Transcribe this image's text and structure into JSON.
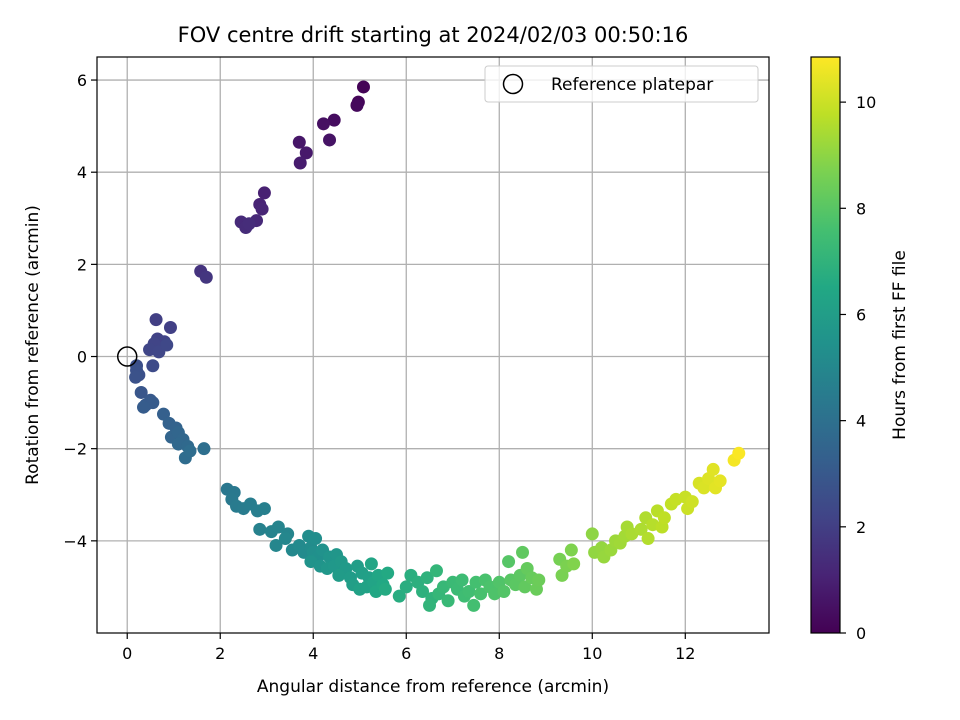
{
  "chart_data": {
    "type": "scatter",
    "title": "FOV centre drift starting at 2024/02/03 00:50:16",
    "xlabel": "Angular distance from reference (arcmin)",
    "ylabel": "Rotation from reference (arcmin)",
    "xlim": [
      -0.65,
      13.8
    ],
    "ylim": [
      -6.0,
      6.5
    ],
    "xticks": [
      0,
      2,
      4,
      6,
      8,
      10,
      12
    ],
    "yticks": [
      -4,
      -2,
      0,
      2,
      4,
      6
    ],
    "xtick_labels": [
      "0",
      "2",
      "4",
      "6",
      "8",
      "10",
      "12"
    ],
    "ytick_labels": [
      "−4",
      "−2",
      "0",
      "2",
      "4",
      "6"
    ],
    "grid": true,
    "legend": {
      "placement": "top-right",
      "entries": [
        "Reference platepar"
      ]
    },
    "reference_point": {
      "x": 0,
      "y": 0
    },
    "colorbar": {
      "label": "Hours from first FF file",
      "colormap": "viridis",
      "range": [
        0,
        10.85
      ],
      "ticks": [
        0,
        2,
        4,
        6,
        8,
        10
      ],
      "tick_labels": [
        "0",
        "2",
        "4",
        "6",
        "8",
        "10"
      ]
    },
    "series": [
      {
        "points": [
          [
            5.08,
            5.85,
            0.05
          ],
          [
            4.97,
            5.52,
            0.15
          ],
          [
            4.94,
            5.45,
            0.25
          ],
          [
            4.45,
            5.13,
            0.35
          ],
          [
            4.22,
            5.05,
            0.45
          ],
          [
            4.35,
            4.7,
            0.55
          ],
          [
            3.7,
            4.65,
            0.65
          ],
          [
            3.85,
            4.42,
            0.75
          ],
          [
            3.72,
            4.2,
            0.85
          ],
          [
            2.95,
            3.55,
            1.0
          ],
          [
            2.85,
            3.3,
            1.1
          ],
          [
            2.9,
            3.2,
            1.15
          ],
          [
            2.78,
            2.95,
            1.25
          ],
          [
            2.45,
            2.92,
            1.3
          ],
          [
            2.55,
            2.8,
            1.35
          ],
          [
            2.62,
            2.88,
            1.4
          ],
          [
            1.58,
            1.85,
            1.6
          ],
          [
            1.7,
            1.72,
            1.7
          ],
          [
            0.62,
            0.8,
            2.0
          ],
          [
            0.93,
            0.63,
            2.05
          ],
          [
            0.65,
            0.38,
            2.1
          ],
          [
            0.8,
            0.32,
            2.15
          ],
          [
            0.58,
            0.28,
            2.2
          ],
          [
            0.48,
            0.15,
            2.25
          ],
          [
            0.68,
            0.1,
            2.3
          ],
          [
            0.85,
            0.25,
            2.35
          ],
          [
            0.55,
            -0.2,
            2.45
          ],
          [
            0.2,
            -0.2,
            2.6
          ],
          [
            0.25,
            -0.4,
            2.65
          ],
          [
            0.2,
            -0.3,
            2.7
          ],
          [
            0.18,
            -0.45,
            2.75
          ],
          [
            0.3,
            -0.78,
            2.9
          ],
          [
            0.5,
            -0.95,
            3.0
          ],
          [
            0.4,
            -1.05,
            3.05
          ],
          [
            0.55,
            -1.0,
            3.1
          ],
          [
            0.35,
            -1.1,
            3.15
          ],
          [
            0.78,
            -1.25,
            3.3
          ],
          [
            0.9,
            -1.45,
            3.4
          ],
          [
            1.05,
            -1.55,
            3.45
          ],
          [
            0.95,
            -1.75,
            3.5
          ],
          [
            1.1,
            -1.65,
            3.55
          ],
          [
            1.2,
            -1.8,
            3.6
          ],
          [
            1.1,
            -1.9,
            3.65
          ],
          [
            1.3,
            -1.95,
            3.7
          ],
          [
            1.25,
            -2.2,
            3.8
          ],
          [
            1.35,
            -2.05,
            3.85
          ],
          [
            1.65,
            -2.0,
            3.95
          ],
          [
            2.15,
            -2.88,
            4.3
          ],
          [
            2.3,
            -2.95,
            4.35
          ],
          [
            2.25,
            -3.1,
            4.4
          ],
          [
            2.35,
            -3.25,
            4.45
          ],
          [
            2.5,
            -3.3,
            4.5
          ],
          [
            2.65,
            -3.2,
            4.55
          ],
          [
            2.8,
            -3.35,
            4.6
          ],
          [
            2.95,
            -3.3,
            4.65
          ],
          [
            2.85,
            -3.75,
            4.75
          ],
          [
            3.1,
            -3.8,
            4.8
          ],
          [
            3.25,
            -3.7,
            4.85
          ],
          [
            3.45,
            -3.85,
            4.9
          ],
          [
            3.2,
            -4.1,
            4.95
          ],
          [
            3.4,
            -3.95,
            5.0
          ],
          [
            3.55,
            -4.2,
            5.05
          ],
          [
            3.7,
            -4.1,
            5.1
          ],
          [
            3.8,
            -4.25,
            5.15
          ],
          [
            3.95,
            -4.15,
            5.2
          ],
          [
            3.9,
            -3.9,
            5.25
          ],
          [
            4.05,
            -3.95,
            5.3
          ],
          [
            4.0,
            -4.25,
            5.35
          ],
          [
            4.1,
            -4.35,
            5.4
          ],
          [
            4.2,
            -4.2,
            5.45
          ],
          [
            3.95,
            -4.45,
            5.5
          ],
          [
            4.15,
            -4.55,
            5.55
          ],
          [
            4.35,
            -4.35,
            5.6
          ],
          [
            4.5,
            -4.3,
            5.65
          ],
          [
            4.3,
            -4.6,
            5.7
          ],
          [
            4.45,
            -4.55,
            5.75
          ],
          [
            4.6,
            -4.45,
            5.8
          ],
          [
            4.7,
            -4.6,
            5.85
          ],
          [
            4.55,
            -4.75,
            5.9
          ],
          [
            4.8,
            -4.8,
            5.95
          ],
          [
            4.95,
            -4.55,
            6.0
          ],
          [
            4.85,
            -4.95,
            6.05
          ],
          [
            5.05,
            -4.7,
            6.1
          ],
          [
            5.2,
            -4.8,
            6.15
          ],
          [
            5.0,
            -5.05,
            6.2
          ],
          [
            5.15,
            -5.0,
            6.25
          ],
          [
            5.3,
            -4.9,
            6.3
          ],
          [
            5.25,
            -4.5,
            6.35
          ],
          [
            5.4,
            -4.75,
            6.4
          ],
          [
            5.35,
            -5.1,
            6.45
          ],
          [
            5.5,
            -4.95,
            6.5
          ],
          [
            5.6,
            -4.7,
            6.55
          ],
          [
            5.55,
            -5.05,
            6.6
          ],
          [
            5.85,
            -5.2,
            6.7
          ],
          [
            6.0,
            -5.0,
            6.75
          ],
          [
            6.1,
            -4.75,
            6.8
          ],
          [
            6.25,
            -4.9,
            6.85
          ],
          [
            6.35,
            -5.1,
            6.9
          ],
          [
            6.45,
            -4.8,
            6.95
          ],
          [
            6.55,
            -5.25,
            7.0
          ],
          [
            6.5,
            -5.4,
            7.05
          ],
          [
            6.65,
            -4.65,
            7.1
          ],
          [
            6.7,
            -5.15,
            7.15
          ],
          [
            6.8,
            -5.0,
            7.2
          ],
          [
            6.9,
            -5.3,
            7.25
          ],
          [
            7.0,
            -4.9,
            7.3
          ],
          [
            7.1,
            -5.05,
            7.35
          ],
          [
            7.2,
            -4.85,
            7.4
          ],
          [
            7.25,
            -5.2,
            7.45
          ],
          [
            7.35,
            -5.1,
            7.5
          ],
          [
            7.45,
            -5.4,
            7.55
          ],
          [
            7.5,
            -4.9,
            7.6
          ],
          [
            7.6,
            -5.15,
            7.65
          ],
          [
            7.7,
            -4.85,
            7.7
          ],
          [
            7.8,
            -5.0,
            7.75
          ],
          [
            7.9,
            -5.15,
            7.8
          ],
          [
            8.0,
            -4.9,
            7.85
          ],
          [
            8.1,
            -5.1,
            7.9
          ],
          [
            8.2,
            -4.45,
            7.95
          ],
          [
            8.25,
            -4.85,
            8.0
          ],
          [
            8.35,
            -4.95,
            8.05
          ],
          [
            8.45,
            -4.75,
            8.1
          ],
          [
            8.5,
            -4.25,
            8.15
          ],
          [
            8.55,
            -5.0,
            8.2
          ],
          [
            8.6,
            -4.6,
            8.25
          ],
          [
            8.7,
            -4.8,
            8.3
          ],
          [
            8.8,
            -5.05,
            8.35
          ],
          [
            8.85,
            -4.85,
            8.4
          ],
          [
            9.3,
            -4.4,
            8.6
          ],
          [
            9.35,
            -4.75,
            8.65
          ],
          [
            9.45,
            -4.55,
            8.7
          ],
          [
            9.55,
            -4.2,
            8.75
          ],
          [
            9.6,
            -4.5,
            8.8
          ],
          [
            10.0,
            -3.85,
            9.0
          ],
          [
            10.05,
            -4.25,
            9.05
          ],
          [
            10.2,
            -4.15,
            9.1
          ],
          [
            10.25,
            -4.35,
            9.15
          ],
          [
            10.4,
            -4.2,
            9.2
          ],
          [
            10.5,
            -4.0,
            9.25
          ],
          [
            10.6,
            -4.05,
            9.3
          ],
          [
            10.7,
            -3.9,
            9.35
          ],
          [
            10.75,
            -3.7,
            9.4
          ],
          [
            10.85,
            -3.85,
            9.45
          ],
          [
            11.05,
            -3.75,
            9.5
          ],
          [
            11.15,
            -3.5,
            9.55
          ],
          [
            11.2,
            -3.95,
            9.6
          ],
          [
            11.3,
            -3.65,
            9.65
          ],
          [
            11.4,
            -3.35,
            9.7
          ],
          [
            11.5,
            -3.7,
            9.75
          ],
          [
            11.55,
            -3.5,
            9.8
          ],
          [
            11.7,
            -3.2,
            9.85
          ],
          [
            11.8,
            -3.1,
            9.9
          ],
          [
            12.0,
            -3.05,
            9.95
          ],
          [
            12.05,
            -3.3,
            10.0
          ],
          [
            12.15,
            -3.15,
            10.05
          ],
          [
            12.3,
            -2.75,
            10.2
          ],
          [
            12.4,
            -2.85,
            10.25
          ],
          [
            12.5,
            -2.65,
            10.3
          ],
          [
            12.6,
            -2.45,
            10.35
          ],
          [
            12.65,
            -2.85,
            10.4
          ],
          [
            12.75,
            -2.7,
            10.45
          ],
          [
            13.05,
            -2.25,
            10.7
          ],
          [
            13.15,
            -2.1,
            10.8
          ]
        ]
      }
    ]
  }
}
